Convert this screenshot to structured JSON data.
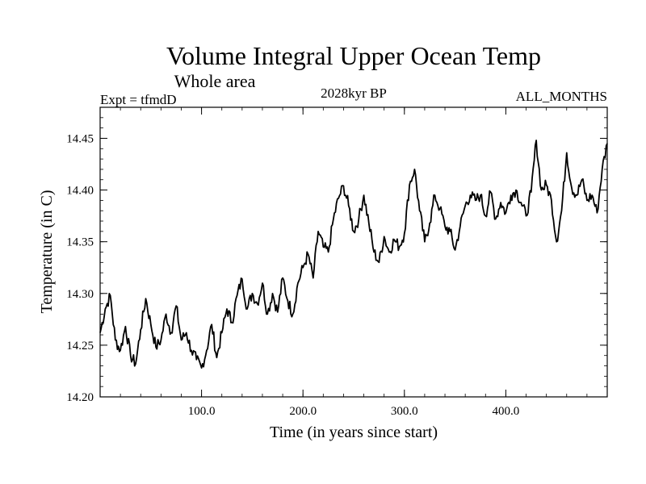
{
  "header": {
    "title": "Volume Integral Upper Ocean Temp",
    "subtitle": "Whole area",
    "expt": "Expt = tfmdD",
    "period": "2028kyr BP",
    "months": "ALL_MONTHS"
  },
  "chart_data": {
    "type": "line",
    "title": "Volume Integral Upper Ocean Temp",
    "subtitle": "Whole area",
    "xlabel": "Time (in years since start)",
    "ylabel": "Temperature (in C)",
    "xlim": [
      0,
      500
    ],
    "ylim": [
      14.2,
      14.48
    ],
    "xticks": [
      100,
      200,
      300,
      400
    ],
    "xtick_labels": [
      "100.0",
      "200.0",
      "300.0",
      "400.0"
    ],
    "yticks": [
      14.2,
      14.25,
      14.3,
      14.35,
      14.4,
      14.45
    ],
    "ytick_labels": [
      "14.20",
      "14.25",
      "14.30",
      "14.35",
      "14.40",
      "14.45"
    ],
    "grid": false,
    "series": [
      {
        "name": "Volume Integral Upper Ocean Temp",
        "color": "#000000",
        "x": [
          0,
          5,
          10,
          15,
          20,
          25,
          30,
          35,
          40,
          45,
          50,
          55,
          60,
          65,
          70,
          75,
          80,
          85,
          90,
          95,
          100,
          105,
          110,
          115,
          120,
          125,
          130,
          135,
          140,
          145,
          150,
          155,
          160,
          165,
          170,
          175,
          180,
          185,
          190,
          195,
          200,
          205,
          210,
          215,
          220,
          225,
          230,
          235,
          240,
          245,
          250,
          255,
          260,
          265,
          270,
          275,
          280,
          285,
          290,
          295,
          300,
          305,
          310,
          315,
          320,
          325,
          330,
          335,
          340,
          345,
          350,
          355,
          360,
          365,
          370,
          375,
          380,
          385,
          390,
          395,
          400,
          405,
          410,
          415,
          420,
          425,
          430,
          435,
          440,
          445,
          450,
          455,
          460,
          465,
          470,
          475,
          480,
          485,
          490,
          495,
          500
        ],
        "values": [
          14.262,
          14.285,
          14.298,
          14.255,
          14.245,
          14.268,
          14.24,
          14.232,
          14.265,
          14.295,
          14.27,
          14.248,
          14.255,
          14.28,
          14.262,
          14.288,
          14.255,
          14.262,
          14.245,
          14.236,
          14.228,
          14.245,
          14.27,
          14.238,
          14.262,
          14.285,
          14.272,
          14.298,
          14.314,
          14.285,
          14.3,
          14.29,
          14.31,
          14.28,
          14.3,
          14.282,
          14.315,
          14.293,
          14.28,
          14.31,
          14.325,
          14.338,
          14.315,
          14.36,
          14.345,
          14.34,
          14.372,
          14.392,
          14.404,
          14.385,
          14.36,
          14.372,
          14.395,
          14.368,
          14.34,
          14.33,
          14.355,
          14.34,
          14.352,
          14.345,
          14.358,
          14.405,
          14.42,
          14.38,
          14.35,
          14.368,
          14.395,
          14.382,
          14.365,
          14.36,
          14.342,
          14.365,
          14.385,
          14.395,
          14.39,
          14.395,
          14.375,
          14.398,
          14.372,
          14.388,
          14.378,
          14.395,
          14.4,
          14.388,
          14.375,
          14.398,
          14.448,
          14.4,
          14.405,
          14.39,
          14.35,
          14.38,
          14.436,
          14.402,
          14.395,
          14.41,
          14.39,
          14.395,
          14.378,
          14.42,
          14.445
        ]
      }
    ]
  }
}
